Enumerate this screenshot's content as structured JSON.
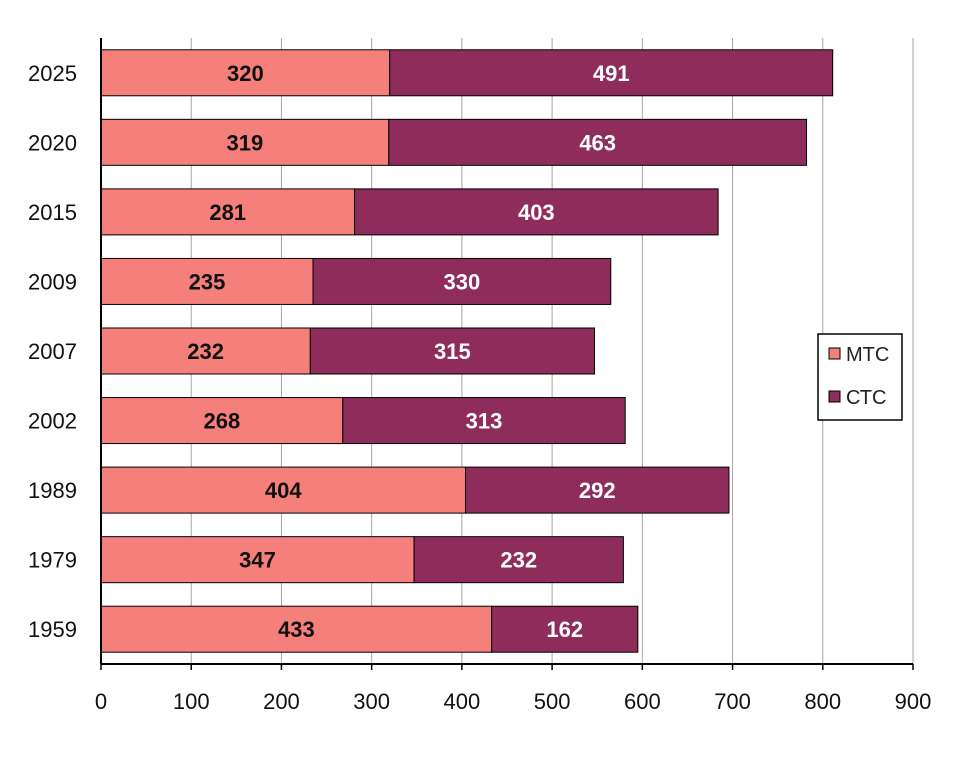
{
  "chart_data": {
    "type": "bar",
    "orientation": "horizontal",
    "stacked": true,
    "categories": [
      "2025",
      "2020",
      "2015",
      "2009",
      "2007",
      "2002",
      "1989",
      "1979",
      "1959"
    ],
    "series": [
      {
        "name": "МТС",
        "values": [
          320,
          319,
          281,
          235,
          232,
          268,
          404,
          347,
          433
        ]
      },
      {
        "name": "СТС",
        "values": [
          491,
          463,
          403,
          330,
          315,
          313,
          292,
          232,
          162
        ]
      }
    ],
    "xlim": [
      0,
      900
    ],
    "x_ticks": [
      "0",
      "100",
      "200",
      "300",
      "400",
      "500",
      "600",
      "700",
      "800",
      "900"
    ],
    "grid": "vertical",
    "legend_position": "right",
    "colors": {
      "МТС": "#f47f7b",
      "СТС": "#8e2d5c"
    }
  }
}
